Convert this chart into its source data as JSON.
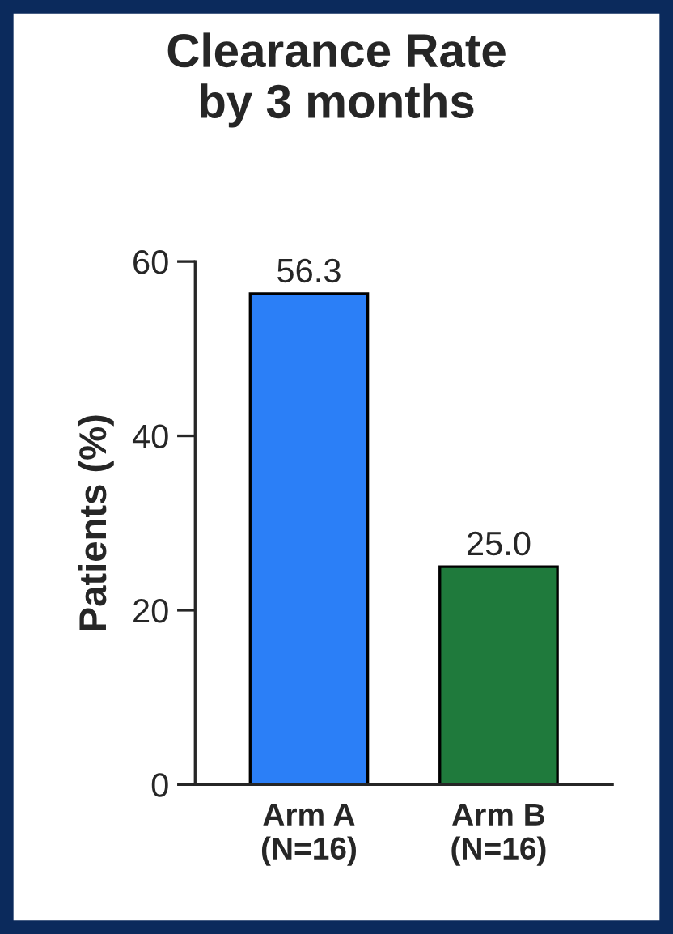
{
  "chart_data": {
    "type": "bar",
    "title": "Clearance Rate\nby 3 months",
    "ylabel": "Patients (%)",
    "categories": [
      "Arm A\n(N=16)",
      "Arm B\n(N=16)"
    ],
    "values": [
      56.3,
      25.0
    ],
    "colors": [
      "#2b7ff7",
      "#1f7a3c"
    ],
    "value_labels": [
      "56.3",
      "25.0"
    ],
    "ylim": [
      0,
      60
    ],
    "yticks": [
      0,
      20,
      40,
      60
    ],
    "grid": false,
    "legend": false
  }
}
